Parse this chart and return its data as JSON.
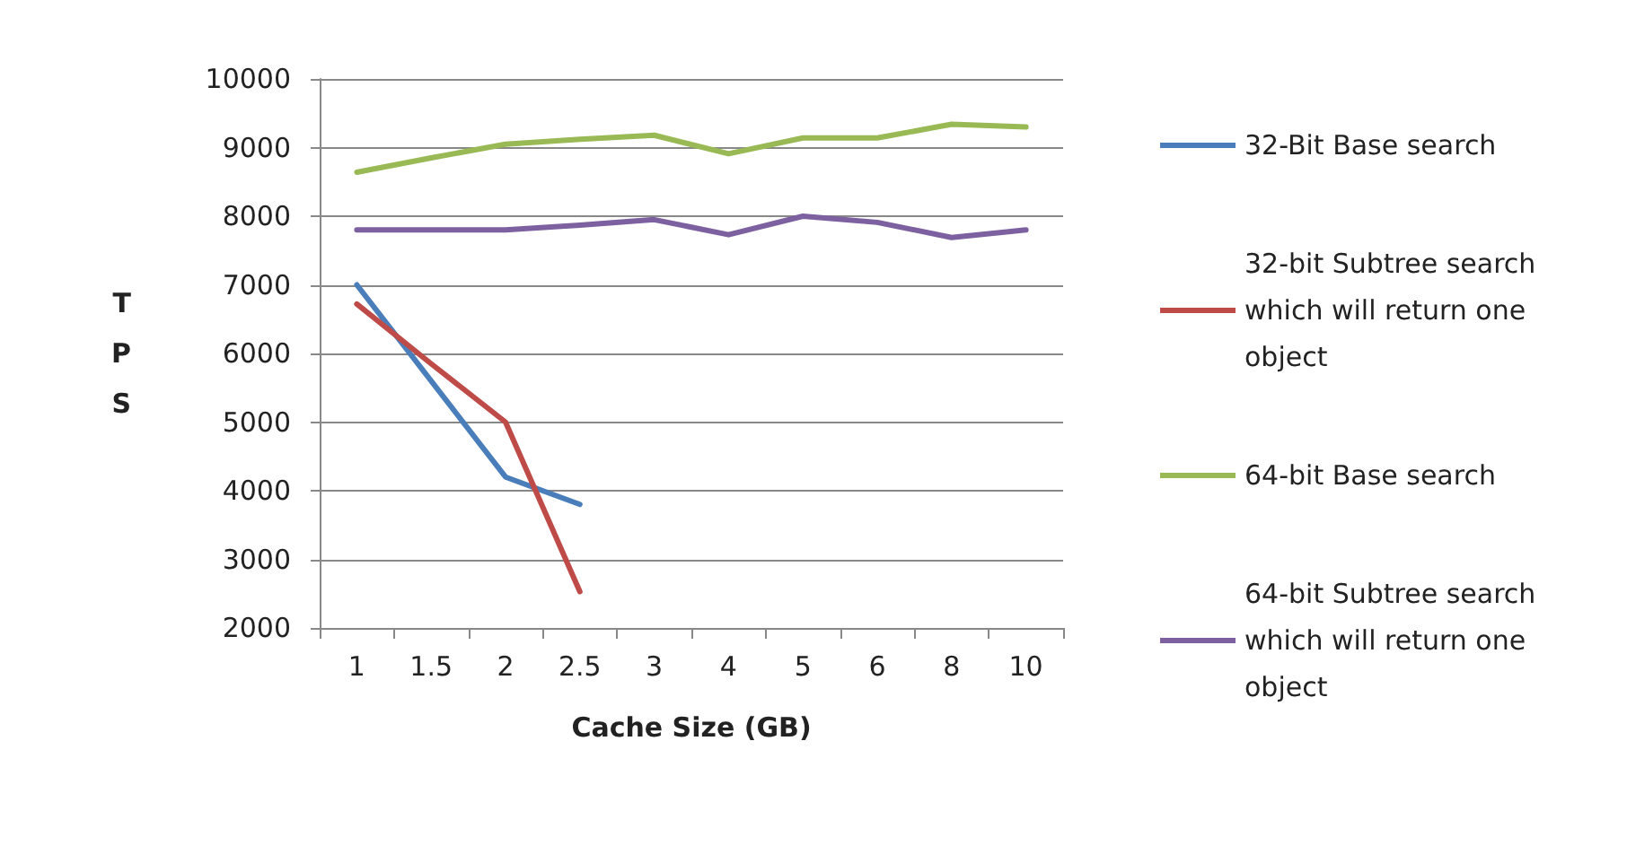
{
  "chart_data": {
    "type": "line",
    "xlabel": "Cache Size (GB)",
    "ylabel": "TPS",
    "categories": [
      "1",
      "1.5",
      "2",
      "2.5",
      "3",
      "4",
      "5",
      "6",
      "8",
      "10"
    ],
    "series": [
      {
        "name": "32-Bit Base search",
        "color": "#4a7ebb",
        "values": [
          7000,
          5600,
          4200,
          3800,
          null,
          null,
          null,
          null,
          null,
          null
        ]
      },
      {
        "name": "32-bit Subtree search which will return one object",
        "color": "#be4b48",
        "values": [
          6720,
          5850,
          5000,
          2530,
          null,
          null,
          null,
          null,
          null,
          null
        ]
      },
      {
        "name": "64-bit Base search",
        "color": "#98b954",
        "values": [
          8640,
          8850,
          9050,
          9120,
          9180,
          8910,
          9140,
          9140,
          9340,
          9300
        ]
      },
      {
        "name": "64-bit Subtree search which will return one object",
        "color": "#7d60a0",
        "values": [
          7800,
          7800,
          7800,
          7870,
          7950,
          7730,
          8000,
          7910,
          7690,
          7800
        ]
      }
    ],
    "ylim": [
      2000,
      10000
    ],
    "yticks": [
      2000,
      3000,
      4000,
      5000,
      6000,
      7000,
      8000,
      9000,
      10000
    ],
    "grid": "y",
    "legend": "right",
    "marker": "none",
    "line_style": "solid"
  }
}
